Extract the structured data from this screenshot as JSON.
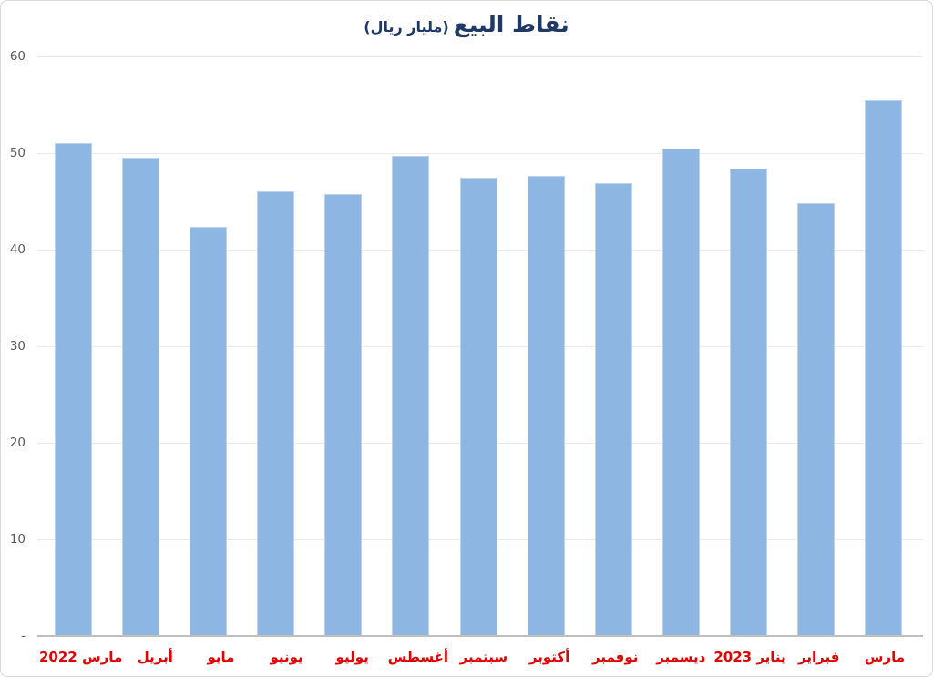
{
  "chart": {
    "title": "نقاط البيع",
    "subtitle": "(مليار ريال)",
    "zero_label": "-",
    "colors": {
      "bar_fill": "#8db6e2",
      "bar_border": "#bcd4ee",
      "title_text": "#1f3864",
      "x_label_text": "#e00000",
      "y_label_text": "#595959",
      "gridline": "#e9e9e9",
      "axis_line": "#bfbfbf",
      "frame_border": "#d9d9d9"
    }
  },
  "chart_data": {
    "type": "bar",
    "title": "نقاط البيع (مليار ريال)",
    "title_translation": "Points of sale (billion riyal)",
    "categories": [
      "مارس 2022",
      "أبريل",
      "مايو",
      "يونيو",
      "يوليو",
      "أغسطس",
      "سبتمبر",
      "أكتوبر",
      "نوفمبر",
      "ديسمبر",
      "يناير 2023",
      "فبراير",
      "مارس"
    ],
    "values": [
      51.0,
      49.5,
      42.4,
      46.0,
      45.8,
      49.7,
      47.5,
      47.6,
      46.9,
      50.5,
      48.4,
      44.8,
      55.5
    ],
    "xlabel": "",
    "ylabel": "",
    "ylim": [
      0,
      60
    ],
    "yticks": [
      {
        "label": "60",
        "value": 60
      },
      {
        "label": "50",
        "value": 50
      },
      {
        "label": "40",
        "value": 40
      },
      {
        "label": "30",
        "value": 30
      },
      {
        "label": "20",
        "value": 20
      },
      {
        "label": "10",
        "value": 10
      },
      {
        "label": "-",
        "value": 0
      }
    ],
    "grid": "horizontal",
    "legend": false,
    "bar_color": "#8db6e2"
  }
}
